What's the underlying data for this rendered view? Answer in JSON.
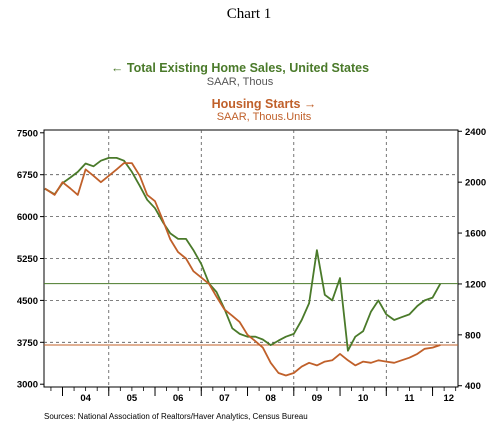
{
  "page": {
    "title": "Chart 1"
  },
  "colors": {
    "green": "#4a7a2a",
    "orange": "#c0602a"
  },
  "chart_data": {
    "type": "line",
    "title": "Chart 1",
    "grid": true,
    "legend_placement": "top",
    "x_range": [
      2003.6,
      2012.55
    ],
    "x_tick_labels": [
      "04",
      "05",
      "06",
      "07",
      "08",
      "09",
      "10",
      "11",
      "12"
    ],
    "left_axis": {
      "range": [
        2950,
        7550
      ],
      "tick_values": [
        3000,
        3750,
        4500,
        5250,
        6000,
        6750,
        7500
      ],
      "tick_labels": [
        "3000",
        "3750",
        "4500",
        "5250",
        "6000",
        "6750",
        "7500"
      ]
    },
    "right_axis": {
      "range": [
        390,
        2410
      ],
      "tick_values": [
        400,
        800,
        1200,
        1600,
        2000,
        2400
      ],
      "tick_labels": [
        "400",
        "800",
        "1200",
        "1600",
        "2000",
        "2400"
      ]
    },
    "series": [
      {
        "name": "Total Existing Home Sales, United States",
        "subtitle": "SAAR, Thous",
        "axis": "left",
        "arrow": "←",
        "color": "#4a7a2a",
        "x": [
          2003.62,
          2003.83,
          2004.0,
          2004.17,
          2004.33,
          2004.5,
          2004.67,
          2004.83,
          2005.0,
          2005.17,
          2005.33,
          2005.5,
          2005.67,
          2005.83,
          2006.0,
          2006.17,
          2006.33,
          2006.5,
          2006.67,
          2006.83,
          2007.0,
          2007.17,
          2007.33,
          2007.5,
          2007.67,
          2007.83,
          2008.0,
          2008.17,
          2008.33,
          2008.5,
          2008.67,
          2008.83,
          2009.0,
          2009.17,
          2009.33,
          2009.5,
          2009.67,
          2009.83,
          2010.0,
          2010.17,
          2010.33,
          2010.5,
          2010.67,
          2010.83,
          2011.0,
          2011.17,
          2011.33,
          2011.5,
          2011.67,
          2011.83,
          2012.0,
          2012.17
        ],
        "values": [
          6500,
          6400,
          6600,
          6700,
          6800,
          6950,
          6900,
          7000,
          7050,
          7050,
          7000,
          6800,
          6550,
          6300,
          6150,
          5900,
          5700,
          5600,
          5600,
          5400,
          5150,
          4800,
          4650,
          4350,
          4000,
          3900,
          3850,
          3850,
          3800,
          3700,
          3780,
          3850,
          3900,
          4150,
          4450,
          5400,
          4600,
          4500,
          4900,
          3600,
          3850,
          3950,
          4300,
          4500,
          4250,
          4150,
          4200,
          4250,
          4400,
          4500,
          4550,
          4800
        ]
      },
      {
        "name": "Housing Starts",
        "subtitle": "SAAR, Thous.Units",
        "axis": "right",
        "arrow": "→",
        "color": "#c0602a",
        "x": [
          2003.62,
          2003.83,
          2004.0,
          2004.17,
          2004.33,
          2004.5,
          2004.67,
          2004.83,
          2005.0,
          2005.17,
          2005.33,
          2005.5,
          2005.67,
          2005.83,
          2006.0,
          2006.17,
          2006.33,
          2006.5,
          2006.67,
          2006.83,
          2007.0,
          2007.17,
          2007.33,
          2007.5,
          2007.67,
          2007.83,
          2008.0,
          2008.17,
          2008.33,
          2008.5,
          2008.67,
          2008.83,
          2009.0,
          2009.17,
          2009.33,
          2009.5,
          2009.67,
          2009.83,
          2010.0,
          2010.17,
          2010.33,
          2010.5,
          2010.67,
          2010.83,
          2011.0,
          2011.17,
          2011.33,
          2011.5,
          2011.67,
          2011.83,
          2012.0,
          2012.17
        ],
        "values": [
          1950,
          1900,
          2000,
          1950,
          1900,
          2100,
          2050,
          2000,
          2050,
          2100,
          2150,
          2150,
          2050,
          1900,
          1850,
          1700,
          1550,
          1450,
          1400,
          1300,
          1250,
          1200,
          1100,
          1000,
          950,
          900,
          800,
          750,
          700,
          580,
          500,
          480,
          500,
          550,
          580,
          560,
          590,
          600,
          650,
          600,
          560,
          590,
          580,
          600,
          590,
          580,
          600,
          620,
          650,
          690,
          700,
          720
        ]
      }
    ],
    "reference_lines": [
      {
        "axis": "left",
        "value": 4800,
        "color": "#4a7a2a"
      },
      {
        "axis": "right",
        "value": 720,
        "color": "#c0602a"
      }
    ],
    "source": "Sources:  National Association of Realtors/Haver Analytics, Census Bureau"
  }
}
